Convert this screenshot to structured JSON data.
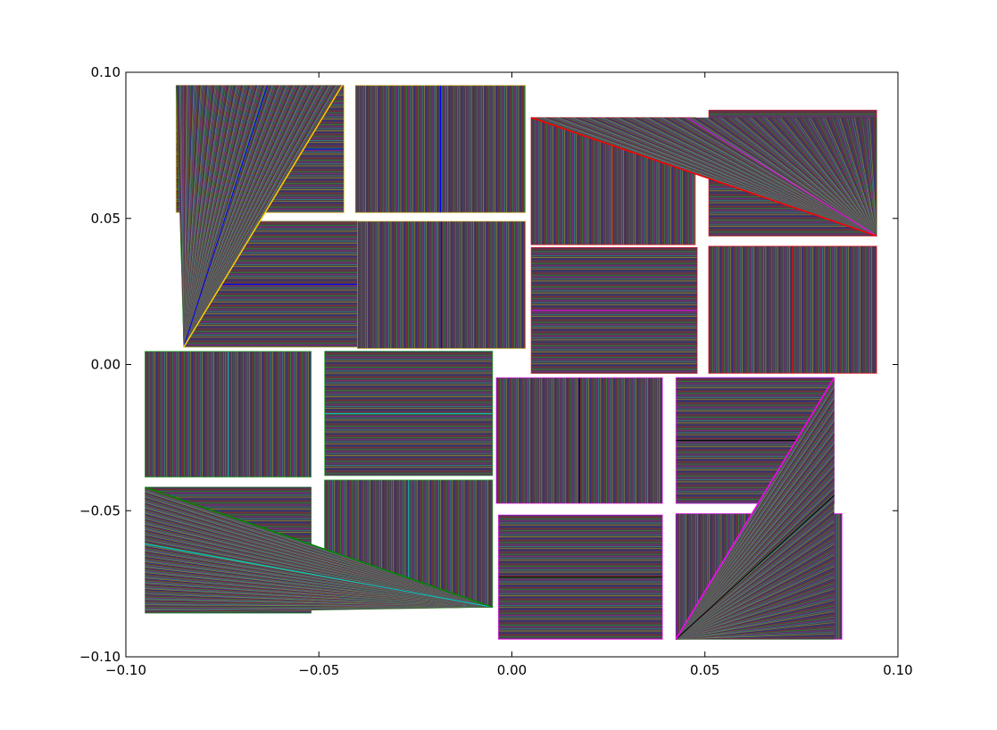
{
  "chart_data": {
    "type": "line",
    "title": "",
    "xlabel": "",
    "ylabel": "",
    "xlim": [
      -0.1,
      0.1
    ],
    "ylim": [
      -0.1,
      0.1
    ],
    "grid": false,
    "x_ticks": [
      {
        "value": -0.1,
        "label": "−0.10"
      },
      {
        "value": -0.05,
        "label": "−0.05"
      },
      {
        "value": 0.0,
        "label": "0.00"
      },
      {
        "value": 0.05,
        "label": "0.05"
      },
      {
        "value": 0.1,
        "label": "0.10"
      }
    ],
    "y_ticks": [
      {
        "value": -0.1,
        "label": "−0.10"
      },
      {
        "value": -0.05,
        "label": "−0.05"
      },
      {
        "value": 0.0,
        "label": "0.00"
      },
      {
        "value": 0.05,
        "label": "0.05"
      },
      {
        "value": 0.1,
        "label": "0.10"
      }
    ],
    "hatch_colors": [
      "#2b2b8c",
      "#8c2b2b",
      "#2b8c2b",
      "#8c2b8c",
      "#2b8c8c",
      "#8c8c2b"
    ],
    "hatch_base_color": "#4a3c52",
    "panels": [
      {
        "fill": "h",
        "accent": "#0000ff",
        "accent_y": -0.0045,
        "outline_color": "#ffcc00",
        "quad": [
          [
            -0.087,
            0.0955
          ],
          [
            -0.0435,
            0.0955
          ],
          [
            -0.0435,
            0.052
          ],
          [
            -0.087,
            0.052
          ]
        ]
      },
      {
        "fill": "v",
        "accent": "#0000ff",
        "outline_color": "#e0b000",
        "quad": [
          [
            -0.0405,
            0.0955
          ],
          [
            0.0035,
            0.0955
          ],
          [
            0.0035,
            0.052
          ],
          [
            -0.0405,
            0.052
          ]
        ]
      },
      {
        "fill": "h",
        "accent": "#0000ff",
        "outline_color": "#ccaa00",
        "quad": [
          [
            -0.085,
            0.049
          ],
          [
            -0.04,
            0.049
          ],
          [
            -0.04,
            0.006
          ],
          [
            -0.085,
            0.006
          ]
        ]
      },
      {
        "fill": "v",
        "accent": "#0000ff",
        "outline_color": "#ccaa00",
        "quad": [
          [
            -0.04,
            0.049
          ],
          [
            0.0035,
            0.049
          ],
          [
            0.0035,
            0.0055
          ],
          [
            -0.04,
            0.0055
          ]
        ]
      },
      {
        "fill": "v",
        "accent": "#ff0000",
        "outline_color": "#ff0000",
        "quad": [
          [
            0.005,
            0.0845
          ],
          [
            0.0475,
            0.0845
          ],
          [
            0.0475,
            0.041
          ],
          [
            0.005,
            0.041
          ]
        ]
      },
      {
        "fill": "h",
        "accent": "#ff00ff",
        "outline_color": "#ff0000",
        "quad": [
          [
            0.051,
            0.087
          ],
          [
            0.0945,
            0.087
          ],
          [
            0.0945,
            0.044
          ],
          [
            0.051,
            0.044
          ]
        ]
      },
      {
        "fill": "h",
        "accent": "#ff00ff",
        "outline_color": "#ff0000",
        "quad": [
          [
            0.005,
            0.04
          ],
          [
            0.048,
            0.04
          ],
          [
            0.048,
            -0.003
          ],
          [
            0.005,
            -0.003
          ]
        ]
      },
      {
        "fill": "v",
        "accent": "#ff0000",
        "outline_color": "#ff0000",
        "quad": [
          [
            0.051,
            0.0405
          ],
          [
            0.0945,
            0.0405
          ],
          [
            0.0945,
            -0.003
          ],
          [
            0.051,
            -0.003
          ]
        ]
      },
      {
        "fill": "v",
        "accent": "#00cccc",
        "outline_color": "#00aa00",
        "quad": [
          [
            -0.095,
            0.0045
          ],
          [
            -0.052,
            0.0045
          ],
          [
            -0.052,
            -0.0385
          ],
          [
            -0.095,
            -0.0385
          ]
        ]
      },
      {
        "fill": "h",
        "accent": "#00cccc",
        "outline_color": "#00aa00",
        "quad": [
          [
            -0.0485,
            0.0045
          ],
          [
            -0.005,
            0.0045
          ],
          [
            -0.005,
            -0.038
          ],
          [
            -0.0485,
            -0.038
          ]
        ]
      },
      {
        "fill": "h",
        "accent": "#00cccc",
        "outline_color": "#006600",
        "quad": [
          [
            -0.095,
            -0.042
          ],
          [
            -0.052,
            -0.042
          ],
          [
            -0.052,
            -0.085
          ],
          [
            -0.095,
            -0.085
          ]
        ]
      },
      {
        "fill": "v",
        "accent": "#00cccc",
        "outline_color": "#00aa00",
        "quad": [
          [
            -0.0485,
            -0.0395
          ],
          [
            -0.005,
            -0.0395
          ],
          [
            -0.005,
            -0.083
          ],
          [
            -0.0485,
            -0.083
          ]
        ]
      },
      {
        "fill": "v",
        "accent": "#000000",
        "outline_color": "#ff00ff",
        "quad": [
          [
            -0.004,
            -0.0045
          ],
          [
            0.039,
            -0.0045
          ],
          [
            0.039,
            -0.0475
          ],
          [
            -0.004,
            -0.0475
          ]
        ]
      },
      {
        "fill": "h",
        "accent": "#000000",
        "outline_color": "#ff00ff",
        "quad": [
          [
            0.0425,
            -0.0045
          ],
          [
            0.0835,
            -0.0045
          ],
          [
            0.0835,
            -0.0475
          ],
          [
            0.0425,
            -0.0475
          ]
        ]
      },
      {
        "fill": "h",
        "accent": "#000000",
        "outline_color": "#ff00ff",
        "quad": [
          [
            -0.0035,
            -0.0515
          ],
          [
            0.039,
            -0.0515
          ],
          [
            0.039,
            -0.094
          ],
          [
            -0.0035,
            -0.094
          ]
        ]
      },
      {
        "fill": "v",
        "accent": "#000000",
        "outline_color": "#ff00ff",
        "quad": [
          [
            0.0425,
            -0.051
          ],
          [
            0.0855,
            -0.051
          ],
          [
            0.0855,
            -0.094
          ],
          [
            0.0425,
            -0.094
          ]
        ]
      }
    ],
    "fans": [
      {
        "apex": [
          -0.085,
          0.006
        ],
        "edge_a": [
          [
            -0.044,
            0.0955
          ],
          [
            -0.087,
            0.0955
          ]
        ],
        "edge_color": "#ffcc00",
        "accent": "#0000ff"
      },
      {
        "apex": [
          0.0945,
          0.044
        ],
        "edge_a": [
          [
            0.005,
            0.0845
          ],
          [
            0.0945,
            0.0845
          ]
        ],
        "edge_color": "#ff0000",
        "accent": "#ff00ff"
      },
      {
        "apex": [
          -0.005,
          -0.083
        ],
        "edge_a": [
          [
            -0.095,
            -0.042
          ],
          [
            -0.095,
            -0.085
          ]
        ],
        "edge_color": "#008800",
        "accent": "#00cccc"
      },
      {
        "apex": [
          0.0425,
          -0.094
        ],
        "edge_a": [
          [
            0.0835,
            -0.0045
          ],
          [
            0.0835,
            -0.094
          ]
        ],
        "edge_color": "#ff00ff",
        "accent": "#000000"
      }
    ]
  }
}
